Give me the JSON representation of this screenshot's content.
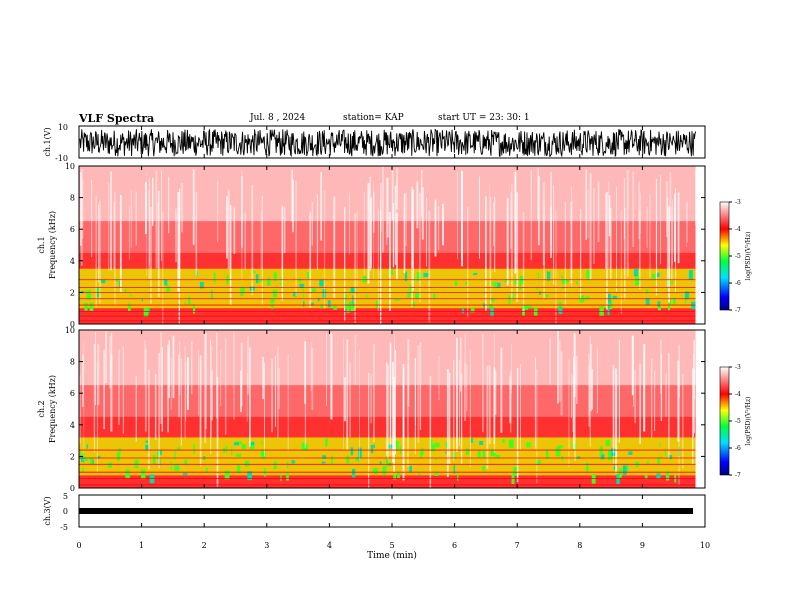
{
  "header": {
    "title": "VLF Spectra",
    "date": "Jul. 8 , 2024",
    "station": "station= KAP",
    "start": "start UT = 23: 30: 1"
  },
  "panels": {
    "ch1_wave_label": "ch.1(V)",
    "ch1_spec_label": "ch.1",
    "ch2_spec_label": "ch.2",
    "ch3_wave_label": "ch.3(V)",
    "freq_label": "Frequency (kHz)",
    "time_label": "Time (min)",
    "colorbar_label": "log(PSD)(V²/Hz)"
  },
  "chart_data": [
    {
      "type": "line",
      "name": "ch1-waveform",
      "ylabel": "ch.1(V)",
      "ylim": [
        -10,
        10
      ],
      "yticks": [
        "10",
        "-10"
      ],
      "xlim": [
        0,
        10
      ],
      "amplitude_range": [
        -9,
        8
      ],
      "description_color": "#000000"
    },
    {
      "type": "heatmap",
      "name": "ch1-spectrogram",
      "xlabel": "",
      "ylabel": "Frequency (kHz)",
      "xlim": [
        0,
        9.85
      ],
      "ylim": [
        0,
        10
      ],
      "yticks": [
        "0",
        "2",
        "4",
        "6",
        "8",
        "10"
      ],
      "colorbar": {
        "min": -7,
        "max": -3,
        "ticks": [
          "-3",
          "-4",
          "-5",
          "-6",
          "-7"
        ],
        "label": "log(PSD)(V²/Hz)"
      },
      "features": {
        "strong_band_khz": [
          1.0,
          3.5
        ],
        "narrowband_lines_khz": [
          0.2,
          0.5,
          0.8,
          1.2,
          1.6,
          2.0,
          2.3,
          2.8
        ]
      }
    },
    {
      "type": "heatmap",
      "name": "ch2-spectrogram",
      "xlabel": "",
      "ylabel": "Frequency (kHz)",
      "xlim": [
        0,
        9.85
      ],
      "ylim": [
        0,
        10
      ],
      "yticks": [
        "0",
        "2",
        "4",
        "6",
        "8",
        "10"
      ],
      "colorbar": {
        "min": -7,
        "max": -3,
        "ticks": [
          "-3",
          "-4",
          "-5",
          "-6",
          "-7"
        ],
        "label": "log(PSD)(V²/Hz)"
      },
      "features": {
        "strong_band_khz": [
          0.8,
          3.2
        ],
        "narrowband_lines_khz": [
          0.2,
          0.6,
          1.0,
          1.5,
          1.9,
          2.4
        ]
      }
    },
    {
      "type": "line",
      "name": "ch3-waveform",
      "ylabel": "ch.3(V)",
      "ylim": [
        -5,
        5
      ],
      "yticks": [
        "5",
        "0",
        "-5"
      ],
      "xlim": [
        0,
        10
      ],
      "amplitude_range": [
        -0.5,
        0.5
      ]
    }
  ],
  "x_axis": {
    "label": "Time (min)",
    "ticks": [
      "0",
      "1",
      "2",
      "3",
      "4",
      "5",
      "6",
      "7",
      "8",
      "9",
      "10"
    ]
  }
}
